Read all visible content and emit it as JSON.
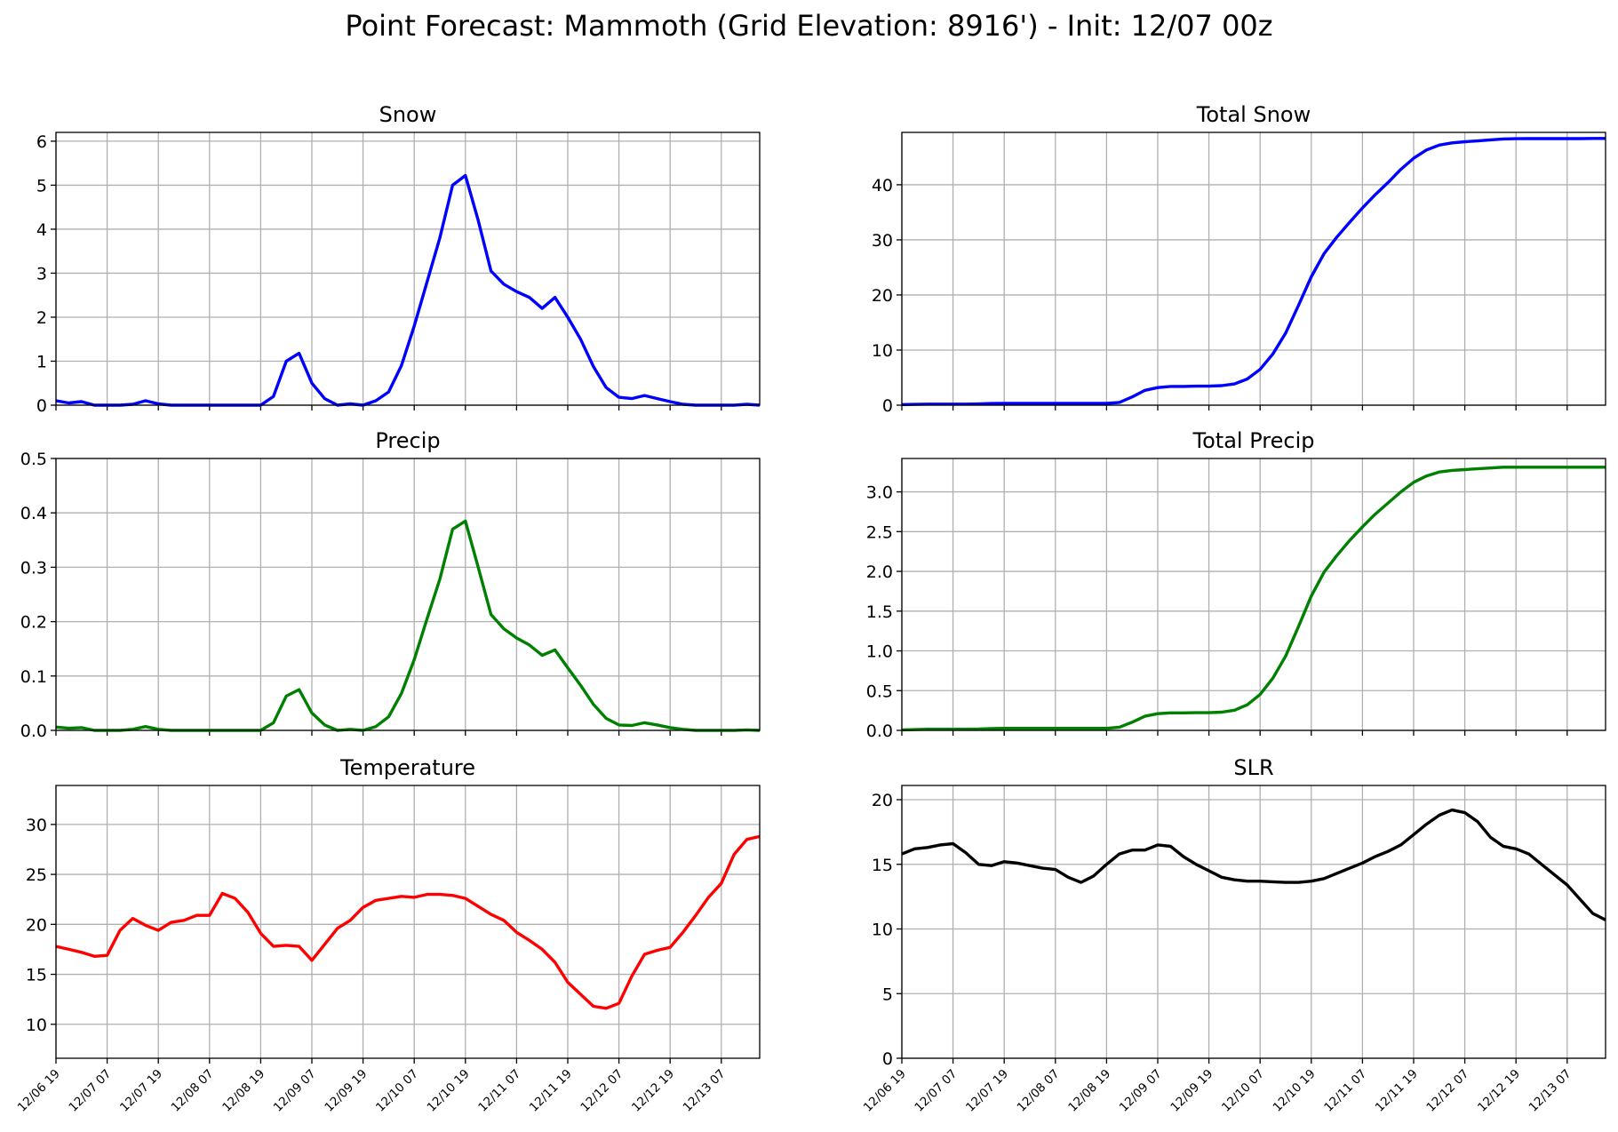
{
  "title": "Point Forecast: Mammoth (Grid Elevation: 8916') - Init: 12/07 00z",
  "x_tick_labels": [
    "12/06 19",
    "12/07 07",
    "12/07 19",
    "12/08 07",
    "12/08 19",
    "12/09 07",
    "12/09 19",
    "12/10 07",
    "12/10 19",
    "12/11 07",
    "12/11 19",
    "12/12 07",
    "12/12 19",
    "12/13 07"
  ],
  "chart_data": [
    {
      "type": "line",
      "title": "Snow",
      "color": "#0000ff",
      "ylim": [
        0,
        6.2
      ],
      "yticks": [
        "0",
        "1",
        "2",
        "3",
        "4",
        "5",
        "6"
      ],
      "grid": true,
      "x_hours_from_first_tick": [
        0,
        3,
        6,
        9,
        12,
        15,
        18,
        21,
        24,
        27,
        30,
        33,
        36,
        39,
        42,
        45,
        48,
        51,
        54,
        57,
        60,
        63,
        66,
        69,
        72,
        75,
        78,
        81,
        84,
        87,
        90,
        93,
        96,
        99,
        102,
        105,
        108,
        111,
        114,
        117,
        120,
        123,
        126,
        129,
        132,
        135,
        138,
        141,
        144,
        147,
        150,
        153,
        156,
        159,
        162,
        165
      ],
      "values": [
        0.1,
        0.05,
        0.08,
        0.0,
        0.0,
        0.0,
        0.02,
        0.1,
        0.03,
        0.0,
        0.0,
        0.0,
        0.0,
        0.0,
        0.0,
        0.0,
        0.0,
        0.2,
        1.0,
        1.18,
        0.5,
        0.15,
        0.0,
        0.03,
        0.0,
        0.1,
        0.3,
        0.9,
        1.8,
        2.8,
        3.8,
        5.0,
        5.22,
        4.2,
        3.05,
        2.75,
        2.58,
        2.45,
        2.2,
        2.45,
        2.0,
        1.5,
        0.88,
        0.4,
        0.18,
        0.15,
        0.22,
        0.15,
        0.08,
        0.02,
        0.0,
        0.0,
        0.0,
        0.0,
        0.02,
        0.0
      ]
    },
    {
      "type": "line",
      "title": "Total Snow",
      "color": "#0000ff",
      "ylim": [
        0,
        49.5
      ],
      "yticks": [
        "0",
        "10",
        "20",
        "30",
        "40"
      ],
      "grid": true,
      "x_hours_from_first_tick": [
        0,
        3,
        6,
        9,
        12,
        15,
        18,
        21,
        24,
        27,
        30,
        33,
        36,
        39,
        42,
        45,
        48,
        51,
        54,
        57,
        60,
        63,
        66,
        69,
        72,
        75,
        78,
        81,
        84,
        87,
        90,
        93,
        96,
        99,
        102,
        105,
        108,
        111,
        114,
        117,
        120,
        123,
        126,
        129,
        132,
        135,
        138,
        141,
        144,
        147,
        150,
        153,
        156,
        159,
        162,
        165
      ],
      "values": [
        0.1,
        0.15,
        0.2,
        0.2,
        0.2,
        0.2,
        0.22,
        0.3,
        0.32,
        0.32,
        0.32,
        0.32,
        0.32,
        0.32,
        0.32,
        0.32,
        0.32,
        0.5,
        1.5,
        2.7,
        3.2,
        3.4,
        3.4,
        3.45,
        3.45,
        3.55,
        3.85,
        4.75,
        6.5,
        9.3,
        13.1,
        18.1,
        23.3,
        27.5,
        30.5,
        33.2,
        35.8,
        38.2,
        40.4,
        42.8,
        44.8,
        46.3,
        47.2,
        47.6,
        47.8,
        47.95,
        48.15,
        48.3,
        48.35,
        48.37,
        48.37,
        48.37,
        48.37,
        48.37,
        48.4,
        48.4
      ]
    },
    {
      "type": "line",
      "title": "Precip",
      "color": "#008000",
      "ylim": [
        0,
        0.5
      ],
      "yticks": [
        "0.0",
        "0.1",
        "0.2",
        "0.3",
        "0.4",
        "0.5"
      ],
      "grid": true,
      "x_hours_from_first_tick": [
        0,
        3,
        6,
        9,
        12,
        15,
        18,
        21,
        24,
        27,
        30,
        33,
        36,
        39,
        42,
        45,
        48,
        51,
        54,
        57,
        60,
        63,
        66,
        69,
        72,
        75,
        78,
        81,
        84,
        87,
        90,
        93,
        96,
        99,
        102,
        105,
        108,
        111,
        114,
        117,
        120,
        123,
        126,
        129,
        132,
        135,
        138,
        141,
        144,
        147,
        150,
        153,
        156,
        159,
        162,
        165
      ],
      "values": [
        0.006,
        0.004,
        0.005,
        0.0,
        0.0,
        0.0,
        0.002,
        0.007,
        0.002,
        0.0,
        0.0,
        0.0,
        0.0,
        0.0,
        0.0,
        0.0,
        0.0,
        0.014,
        0.063,
        0.075,
        0.032,
        0.01,
        0.0,
        0.002,
        0.0,
        0.007,
        0.025,
        0.068,
        0.13,
        0.205,
        0.278,
        0.37,
        0.385,
        0.3,
        0.213,
        0.187,
        0.17,
        0.157,
        0.138,
        0.148,
        0.115,
        0.083,
        0.048,
        0.022,
        0.01,
        0.009,
        0.014,
        0.01,
        0.005,
        0.002,
        0.0,
        0.0,
        0.0,
        0.0,
        0.001,
        0.0
      ]
    },
    {
      "type": "line",
      "title": "Total Precip",
      "color": "#008000",
      "ylim": [
        0,
        3.42
      ],
      "yticks": [
        "0.0",
        "0.5",
        "1.0",
        "1.5",
        "2.0",
        "2.5",
        "3.0"
      ],
      "grid": true,
      "x_hours_from_first_tick": [
        0,
        3,
        6,
        9,
        12,
        15,
        18,
        21,
        24,
        27,
        30,
        33,
        36,
        39,
        42,
        45,
        48,
        51,
        54,
        57,
        60,
        63,
        66,
        69,
        72,
        75,
        78,
        81,
        84,
        87,
        90,
        93,
        96,
        99,
        102,
        105,
        108,
        111,
        114,
        117,
        120,
        123,
        126,
        129,
        132,
        135,
        138,
        141,
        144,
        147,
        150,
        153,
        156,
        159,
        162,
        165
      ],
      "values": [
        0.006,
        0.01,
        0.015,
        0.015,
        0.015,
        0.015,
        0.017,
        0.024,
        0.026,
        0.026,
        0.026,
        0.026,
        0.026,
        0.026,
        0.026,
        0.026,
        0.026,
        0.04,
        0.103,
        0.178,
        0.21,
        0.22,
        0.22,
        0.222,
        0.222,
        0.229,
        0.254,
        0.322,
        0.452,
        0.657,
        0.935,
        1.305,
        1.69,
        1.99,
        2.2,
        2.39,
        2.56,
        2.72,
        2.86,
        3.0,
        3.12,
        3.2,
        3.25,
        3.27,
        3.28,
        3.29,
        3.3,
        3.31,
        3.31,
        3.31,
        3.31,
        3.31,
        3.31,
        3.31,
        3.31,
        3.31
      ]
    },
    {
      "type": "line",
      "title": "Temperature",
      "color": "#ff0000",
      "ylim": [
        6.6,
        33.9
      ],
      "yticks": [
        "10",
        "15",
        "20",
        "25",
        "30"
      ],
      "grid": true,
      "x_hours_from_first_tick": [
        0,
        3,
        6,
        9,
        12,
        15,
        18,
        21,
        24,
        27,
        30,
        33,
        36,
        39,
        42,
        45,
        48,
        51,
        54,
        57,
        60,
        63,
        66,
        69,
        72,
        75,
        78,
        81,
        84,
        87,
        90,
        93,
        96,
        99,
        102,
        105,
        108,
        111,
        114,
        117,
        120,
        123,
        126,
        129,
        132,
        135,
        138,
        141,
        144,
        147,
        150,
        153,
        156,
        159,
        162,
        165
      ],
      "values": [
        17.8,
        17.5,
        17.2,
        16.8,
        16.9,
        19.4,
        20.6,
        19.9,
        19.4,
        20.2,
        20.4,
        20.9,
        20.9,
        23.1,
        22.6,
        21.2,
        19.1,
        17.8,
        17.9,
        17.8,
        16.4,
        18.0,
        19.6,
        20.4,
        21.7,
        22.4,
        22.6,
        22.8,
        22.7,
        23.0,
        23.0,
        22.9,
        22.6,
        21.8,
        21.0,
        20.4,
        19.2,
        18.4,
        17.5,
        16.2,
        14.2,
        13.0,
        11.8,
        11.6,
        12.1,
        14.8,
        17.0,
        17.4,
        17.7,
        19.2,
        20.9,
        22.7,
        24.1,
        27.0,
        28.5,
        28.8
      ]
    },
    {
      "type": "line",
      "title": "SLR",
      "color": "#000000",
      "ylim": [
        0,
        21.1
      ],
      "yticks": [
        "0",
        "5",
        "10",
        "15",
        "20"
      ],
      "grid": true,
      "x_hours_from_first_tick": [
        0,
        3,
        6,
        9,
        12,
        15,
        18,
        21,
        24,
        27,
        30,
        33,
        36,
        39,
        42,
        45,
        48,
        51,
        54,
        57,
        60,
        63,
        66,
        69,
        72,
        75,
        78,
        81,
        84,
        87,
        90,
        93,
        96,
        99,
        102,
        105,
        108,
        111,
        114,
        117,
        120,
        123,
        126,
        129,
        132,
        135,
        138,
        141,
        144,
        147,
        150,
        153,
        156,
        159,
        162,
        165
      ],
      "values": [
        15.8,
        16.2,
        16.3,
        16.5,
        16.6,
        15.9,
        15.0,
        14.9,
        15.2,
        15.1,
        14.9,
        14.7,
        14.6,
        14.0,
        13.6,
        14.1,
        15.0,
        15.8,
        16.1,
        16.1,
        16.5,
        16.4,
        15.6,
        15.0,
        14.5,
        14.0,
        13.8,
        13.7,
        13.7,
        13.65,
        13.6,
        13.6,
        13.7,
        13.9,
        14.3,
        14.7,
        15.1,
        15.6,
        16.0,
        16.5,
        17.3,
        18.1,
        18.8,
        19.2,
        19.0,
        18.3,
        17.1,
        16.4,
        16.2,
        15.8,
        15.0,
        14.2,
        13.4,
        12.3,
        11.2,
        10.7
      ]
    }
  ]
}
